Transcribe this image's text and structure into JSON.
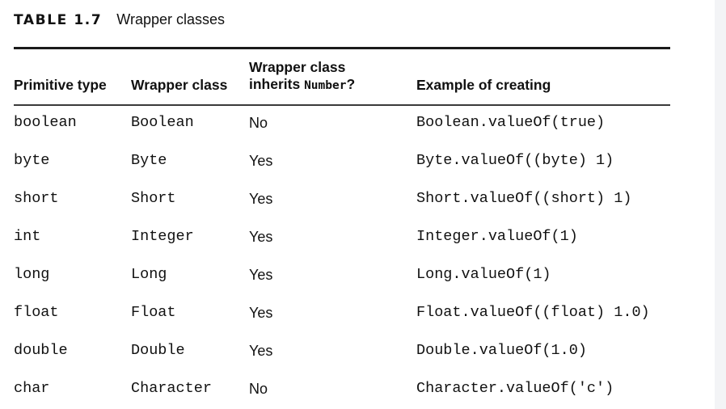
{
  "caption": {
    "label": "TABLE 1.7",
    "title": "Wrapper classes"
  },
  "headers": {
    "primitive": "Primitive type",
    "wrapper": "Wrapper class",
    "inherits_line1": "Wrapper class",
    "inherits_prefix": "inherits ",
    "inherits_code": "Number",
    "inherits_suffix": "?",
    "example": "Example of creating"
  },
  "rows": [
    {
      "primitive": "boolean",
      "wrapper": "Boolean",
      "inherits": "No",
      "example": "Boolean.valueOf(true)"
    },
    {
      "primitive": "byte",
      "wrapper": "Byte",
      "inherits": "Yes",
      "example": "Byte.valueOf((byte) 1)"
    },
    {
      "primitive": "short",
      "wrapper": "Short",
      "inherits": "Yes",
      "example": "Short.valueOf((short) 1)"
    },
    {
      "primitive": "int",
      "wrapper": "Integer",
      "inherits": "Yes",
      "example": "Integer.valueOf(1)"
    },
    {
      "primitive": "long",
      "wrapper": "Long",
      "inherits": "Yes",
      "example": "Long.valueOf(1)"
    },
    {
      "primitive": "float",
      "wrapper": "Float",
      "inherits": "Yes",
      "example": "Float.valueOf((float) 1.0)"
    },
    {
      "primitive": "double",
      "wrapper": "Double",
      "inherits": "Yes",
      "example": "Double.valueOf(1.0)"
    },
    {
      "primitive": "char",
      "wrapper": "Character",
      "inherits": "No",
      "example": "Character.valueOf('c')"
    }
  ]
}
